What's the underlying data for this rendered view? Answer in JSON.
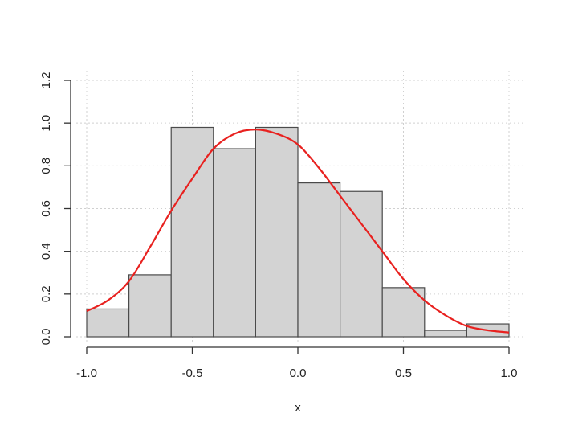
{
  "chart_data": {
    "type": "bar",
    "subtype": "histogram",
    "xlabel": "x",
    "ylabel": "",
    "xlim": [
      -1.0,
      1.0
    ],
    "ylim": [
      0.0,
      1.2
    ],
    "x_ticks": [
      "-1.0",
      "-0.5",
      "0.0",
      "0.5",
      "1.0"
    ],
    "y_ticks": [
      "0.0",
      "0.2",
      "0.4",
      "0.6",
      "0.8",
      "1.0",
      "1.2"
    ],
    "grid": true,
    "bins": [
      {
        "from": -1.0,
        "to": -0.8,
        "value": 0.13
      },
      {
        "from": -0.8,
        "to": -0.6,
        "value": 0.29
      },
      {
        "from": -0.6,
        "to": -0.4,
        "value": 0.98
      },
      {
        "from": -0.4,
        "to": -0.2,
        "value": 0.88
      },
      {
        "from": -0.2,
        "to": 0.0,
        "value": 0.98
      },
      {
        "from": 0.0,
        "to": 0.2,
        "value": 0.72
      },
      {
        "from": 0.2,
        "to": 0.4,
        "value": 0.68
      },
      {
        "from": 0.4,
        "to": 0.6,
        "value": 0.23
      },
      {
        "from": 0.6,
        "to": 0.8,
        "value": 0.03
      },
      {
        "from": 0.8,
        "to": 1.0,
        "value": 0.06
      }
    ],
    "curve": {
      "x": [
        -1.0,
        -0.9,
        -0.8,
        -0.7,
        -0.6,
        -0.5,
        -0.4,
        -0.3,
        -0.2,
        -0.1,
        0.0,
        0.1,
        0.2,
        0.3,
        0.4,
        0.5,
        0.6,
        0.7,
        0.8,
        0.9,
        1.0
      ],
      "y": [
        0.12,
        0.17,
        0.26,
        0.42,
        0.59,
        0.74,
        0.88,
        0.95,
        0.97,
        0.95,
        0.9,
        0.79,
        0.66,
        0.53,
        0.4,
        0.27,
        0.17,
        0.1,
        0.05,
        0.03,
        0.02
      ]
    },
    "colors": {
      "bar_fill": "#d3d3d3",
      "bar_stroke": "#4a4a4a",
      "curve": "#e8211f"
    }
  }
}
